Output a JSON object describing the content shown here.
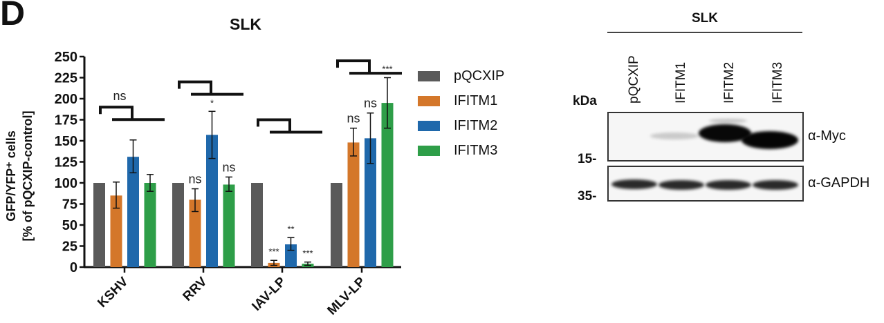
{
  "panel_letter": "D",
  "chart_data": {
    "type": "bar",
    "title": "SLK",
    "xlabel": "",
    "ylabel": "GFP/YFP+ cells [% of pQCXIP-control]",
    "ylabel_line1": "GFP/YFP⁺ cells",
    "ylabel_line2": "[% of pQCXIP-control]",
    "ylim": [
      0,
      250
    ],
    "yticks": [
      0,
      25,
      50,
      75,
      100,
      125,
      150,
      175,
      200,
      225,
      250
    ],
    "grid": false,
    "legend_position": "right",
    "categories": [
      "KSHV",
      "RRV",
      "IAV-LP",
      "MLV-LP"
    ],
    "series": [
      {
        "name": "pQCXIP",
        "color": "#5a5a5a",
        "values": [
          100,
          100,
          100,
          100
        ],
        "err_low": [
          100,
          100,
          100,
          100
        ],
        "err_high": [
          100,
          100,
          100,
          100
        ],
        "annotations": [
          "",
          "",
          "",
          ""
        ]
      },
      {
        "name": "IFITM1",
        "color": "#d4772a",
        "values": [
          85,
          80,
          5,
          148
        ],
        "err_low": [
          70,
          66,
          2,
          132
        ],
        "err_high": [
          101,
          93,
          8,
          165
        ],
        "annotations": [
          "",
          "ns",
          "***",
          "ns"
        ]
      },
      {
        "name": "IFITM2",
        "color": "#1f68ab",
        "values": [
          131,
          157,
          27,
          153
        ],
        "err_low": [
          112,
          129,
          20,
          123
        ],
        "err_high": [
          151,
          185,
          35,
          183
        ],
        "annotations": [
          "",
          "*",
          "**",
          "ns"
        ]
      },
      {
        "name": "IFITM3",
        "color": "#2e9e48",
        "values": [
          100,
          98,
          4,
          195
        ],
        "err_low": [
          90,
          90,
          2,
          165
        ],
        "err_high": [
          110,
          107,
          6,
          225
        ],
        "annotations": [
          "",
          "ns",
          "***",
          "***"
        ]
      }
    ],
    "group_annotations": [
      "ns",
      "",
      "",
      ""
    ],
    "bracket_y": [
      190,
      220,
      175,
      245
    ]
  },
  "legend": [
    {
      "label": "pQCXIP",
      "color": "#5a5a5a"
    },
    {
      "label": "IFITM1",
      "color": "#d4772a"
    },
    {
      "label": "IFITM2",
      "color": "#1f68ab"
    },
    {
      "label": "IFITM3",
      "color": "#2e9e48"
    }
  ],
  "blot": {
    "title": "SLK",
    "kda_label": "kDa",
    "lanes": [
      "pQCXIP",
      "IFITM1",
      "IFITM2",
      "IFITM3"
    ],
    "markers": {
      "m15": "15-",
      "m35": "35-"
    },
    "antibodies": {
      "top": "α-Myc",
      "bottom": "α-GAPDH"
    }
  }
}
